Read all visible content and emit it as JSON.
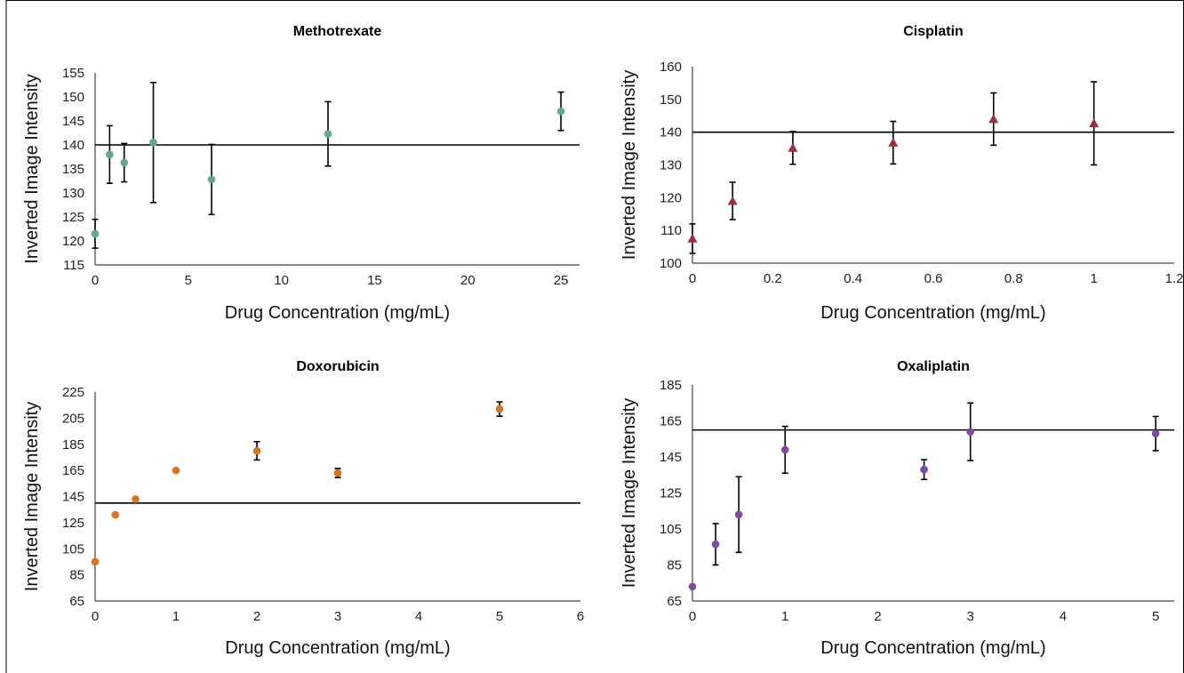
{
  "chart_data": [
    {
      "type": "scatter",
      "title": "Methotrexate",
      "xlabel": "Drug Concentration (mg/mL)",
      "ylabel": "Inverted Image Intensity",
      "xlim": [
        0,
        26
      ],
      "ylim": [
        115,
        155
      ],
      "xticks": [
        "0",
        "5",
        "10",
        "15",
        "20",
        "25"
      ],
      "yticks": [
        "115",
        "120",
        "125",
        "130",
        "135",
        "140",
        "145",
        "150",
        "155"
      ],
      "marker": "circle",
      "color": "#5FA98C",
      "reference_line": 140,
      "points": [
        {
          "x": 0,
          "y": 121.5,
          "err": 3
        },
        {
          "x": 0.78,
          "y": 138,
          "err": 6
        },
        {
          "x": 1.56,
          "y": 136.3,
          "err": 4
        },
        {
          "x": 3.125,
          "y": 140.5,
          "err": 12.5
        },
        {
          "x": 6.25,
          "y": 132.8,
          "err": 7.3
        },
        {
          "x": 12.5,
          "y": 142.3,
          "err": 6.7
        },
        {
          "x": 25,
          "y": 147,
          "err": 4
        }
      ]
    },
    {
      "type": "scatter",
      "title": "Cisplatin",
      "xlabel": "Drug Concentration (mg/mL)",
      "ylabel": "Inverted Image Intensity",
      "xlim": [
        0,
        1.2
      ],
      "ylim": [
        100,
        160
      ],
      "xticks": [
        "0",
        "0.2",
        "0.4",
        "0.6",
        "0.8",
        "1",
        "1.2"
      ],
      "yticks": [
        "100",
        "110",
        "120",
        "130",
        "140",
        "150",
        "160"
      ],
      "marker": "triangle",
      "color": "#9B2F42",
      "reference_line": 140,
      "points": [
        {
          "x": 0,
          "y": 107.5,
          "err": 4.5
        },
        {
          "x": 0.1,
          "y": 119,
          "err": 5.7
        },
        {
          "x": 0.25,
          "y": 135.2,
          "err": 5
        },
        {
          "x": 0.5,
          "y": 136.8,
          "err": 6.5
        },
        {
          "x": 0.75,
          "y": 144,
          "err": 8
        },
        {
          "x": 1,
          "y": 142.7,
          "err": 12.7
        }
      ]
    },
    {
      "type": "scatter",
      "title": "Doxorubicin",
      "xlabel": "Drug Concentration (mg/mL)",
      "ylabel": "Inverted Image Intensity",
      "xlim": [
        0,
        6
      ],
      "ylim": [
        65,
        225
      ],
      "xticks": [
        "0",
        "1",
        "2",
        "3",
        "4",
        "5",
        "6"
      ],
      "yticks": [
        "65",
        "85",
        "105",
        "125",
        "145",
        "165",
        "185",
        "205",
        "225"
      ],
      "marker": "circle",
      "color": "#D8741C",
      "reference_line": 140,
      "points": [
        {
          "x": 0,
          "y": 95,
          "err": 0
        },
        {
          "x": 0.25,
          "y": 131,
          "err": 0
        },
        {
          "x": 0.5,
          "y": 143,
          "err": 0
        },
        {
          "x": 1,
          "y": 165,
          "err": 0
        },
        {
          "x": 2,
          "y": 180,
          "err": 7
        },
        {
          "x": 3,
          "y": 163,
          "err": 3.5
        },
        {
          "x": 5,
          "y": 212,
          "err": 5.5
        }
      ]
    },
    {
      "type": "scatter",
      "title": "Oxaliplatin",
      "xlabel": "Drug Concentration (mg/mL)",
      "ylabel": "Inverted Image Intensity",
      "xlim": [
        0,
        5.2
      ],
      "ylim": [
        65,
        185
      ],
      "xticks": [
        "0",
        "1",
        "2",
        "3",
        "4",
        "5"
      ],
      "yticks": [
        "65",
        "85",
        "105",
        "125",
        "145",
        "165",
        "185"
      ],
      "marker": "circle",
      "color": "#7E4C9A",
      "reference_line": 160,
      "points": [
        {
          "x": 0,
          "y": 73,
          "err": 0
        },
        {
          "x": 0.25,
          "y": 96.5,
          "err": 11.5
        },
        {
          "x": 0.5,
          "y": 113,
          "err": 21
        },
        {
          "x": 1,
          "y": 149,
          "err": 13
        },
        {
          "x": 2.5,
          "y": 138,
          "err": 5.5
        },
        {
          "x": 3,
          "y": 159,
          "err": 16
        },
        {
          "x": 5,
          "y": 158,
          "err": 9.5
        }
      ]
    }
  ]
}
